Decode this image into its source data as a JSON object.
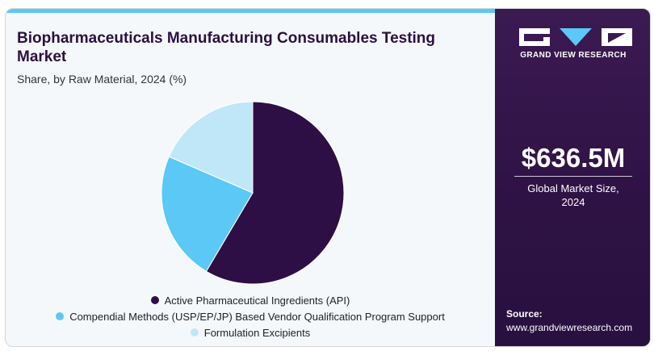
{
  "title": "Biopharmaceuticals Manufacturing Consumables Testing Market",
  "subtitle": "Share, by Raw Material, 2024 (%)",
  "chart_data": {
    "type": "pie",
    "title": "Biopharmaceuticals Manufacturing Consumables Testing Market",
    "subtitle": "Share, by Raw Material, 2024 (%)",
    "categories": [
      "Active Pharmaceutical Ingredients (API)",
      "Compendial Methods (USP/EP/JP) Based Vendor Qualification Program Support",
      "Formulation Excipients"
    ],
    "values": [
      58.5,
      23.0,
      18.5
    ],
    "colors": [
      "#2e0f45",
      "#5bc8f5",
      "#bfe7f8"
    ],
    "legend_position": "bottom"
  },
  "sidebar": {
    "brand_name": "GRAND VIEW RESEARCH",
    "market_value": "$636.5M",
    "market_label_line1": "Global Market Size,",
    "market_label_line2": "2024",
    "source_label": "Source:",
    "source_url": "www.grandviewresearch.com",
    "logo_icon": "grand-view-research-logo"
  }
}
